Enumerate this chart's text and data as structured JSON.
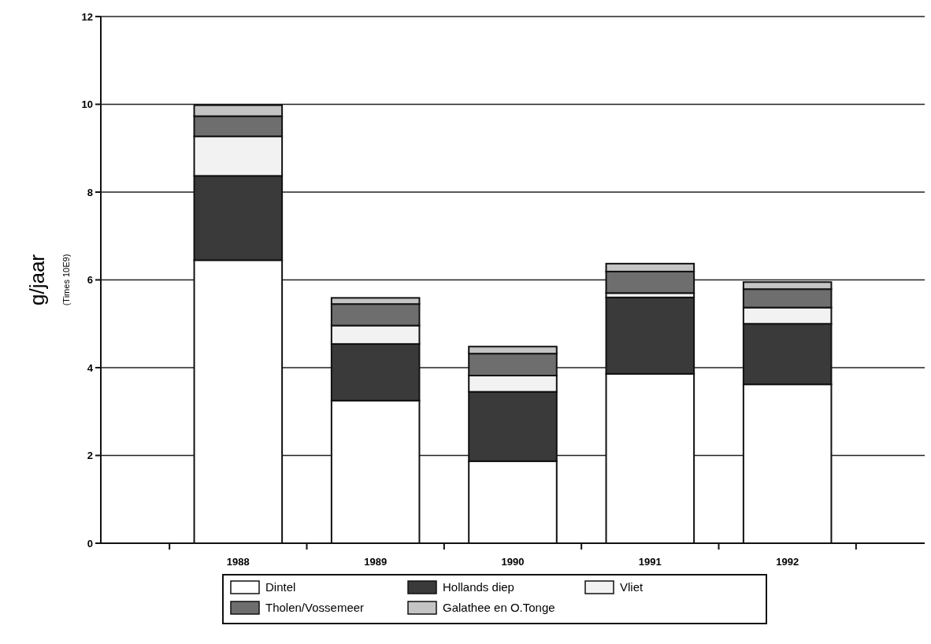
{
  "chart_data": {
    "type": "bar",
    "stacked": true,
    "ylabel": "g/jaar",
    "annotations": [
      "(Times 10E9)"
    ],
    "categories": [
      "1988",
      "1989",
      "1990",
      "1991",
      "1992"
    ],
    "series": [
      {
        "name": "Dintel",
        "color": "#ffffff",
        "values": [
          6.45,
          3.25,
          1.87,
          3.86,
          3.62
        ]
      },
      {
        "name": "Hollands diep",
        "color": "#3a3a3a",
        "values": [
          1.92,
          1.29,
          1.58,
          1.74,
          1.38
        ]
      },
      {
        "name": "Vliet",
        "color": "#f2f2f2",
        "values": [
          0.9,
          0.42,
          0.37,
          0.1,
          0.37
        ]
      },
      {
        "name": "Tholen/Vossemeer",
        "color": "#6e6e6e",
        "values": [
          0.46,
          0.49,
          0.5,
          0.49,
          0.42
        ]
      },
      {
        "name": "Galathee en O.Tonge",
        "color": "#c4c4c4",
        "values": [
          0.25,
          0.14,
          0.16,
          0.18,
          0.16
        ]
      }
    ],
    "ylim": [
      0,
      12
    ],
    "yticks": [
      0,
      2,
      4,
      6,
      8,
      10,
      12
    ],
    "grid": "y",
    "legend": "bottom"
  }
}
